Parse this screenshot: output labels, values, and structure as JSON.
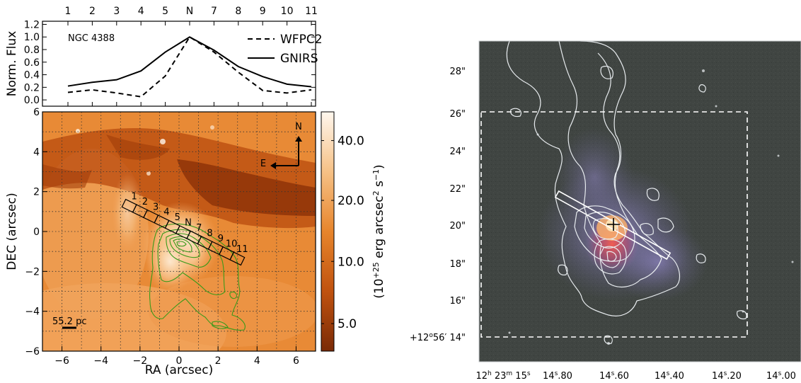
{
  "chart_data": [
    {
      "type": "line",
      "ylabel": "Norm. Flux",
      "annotation": "NGC 4388",
      "categories": [
        "1",
        "2",
        "3",
        "4",
        "5",
        "N",
        "7",
        "8",
        "9",
        "10",
        "11"
      ],
      "ylim": [
        0.0,
        1.0
      ],
      "y_ticks": [
        "0.0",
        "0.2",
        "0.4",
        "0.6",
        "0.8",
        "1.0",
        "1.2"
      ],
      "legend_position": "top-right",
      "series": [
        {
          "name": "WFPC2",
          "style": "dashed",
          "values": [
            0.12,
            0.16,
            0.11,
            0.05,
            0.38,
            1.0,
            0.76,
            0.44,
            0.15,
            0.11,
            0.16
          ]
        },
        {
          "name": "GNIRS",
          "style": "solid",
          "values": [
            0.22,
            0.28,
            0.32,
            0.46,
            0.76,
            1.0,
            0.79,
            0.53,
            0.37,
            0.25,
            0.21
          ]
        }
      ]
    },
    {
      "type": "heatmap",
      "xlabel": "RA (arcsec)",
      "ylabel": "DEC (arcsec)",
      "xlim": [
        -7,
        7
      ],
      "ylim": [
        -6,
        6
      ],
      "x_ticks": [
        "−6",
        "−4",
        "−2",
        "0",
        "2",
        "4",
        "6"
      ],
      "y_ticks": [
        "−6",
        "−4",
        "−2",
        "0",
        "2",
        "4",
        "6"
      ],
      "colormap": "orange",
      "colorbar_label_prefix": "(10",
      "colorbar_label_exp": "+25",
      "colorbar_label_unit": " erg arcsec",
      "colorbar_label_exp2": "2",
      "colorbar_label_unit2": " s",
      "colorbar_label_exp3": "−1",
      "colorbar_label_suffix": ")",
      "colorbar_ticks": [
        "40.0",
        "20.0",
        "10.0",
        "5.0"
      ],
      "compass": {
        "north": "N",
        "east": "E"
      },
      "scale_bar": "55.2 pc",
      "slit_labels": [
        "1",
        "2",
        "3",
        "4",
        "5",
        "N",
        "7",
        "8",
        "9",
        "10",
        "11"
      ]
    },
    {
      "type": "image",
      "y_ticks": [
        "28\"",
        "26\"",
        "24\"",
        "22\"",
        "20\"",
        "18\"",
        "16\""
      ],
      "y_last_prefix": "+12",
      "y_last_deg": "o",
      "y_last_rest": "56′ 14\"",
      "x_ticks": [
        {
          "h": "12",
          "hs": "h",
          "m": "23",
          "ms": "m",
          "s": "15",
          "ss": "s"
        },
        {
          "s": "14",
          "ss": "s",
          "f": ".80"
        },
        {
          "s": "14",
          "ss": "s",
          "f": ".60"
        },
        {
          "s": "14",
          "ss": "s",
          "f": ".40"
        },
        {
          "s": "14",
          "ss": "s",
          "f": ".20"
        },
        {
          "s": "14",
          "ss": "s",
          "f": ".00"
        }
      ]
    }
  ]
}
